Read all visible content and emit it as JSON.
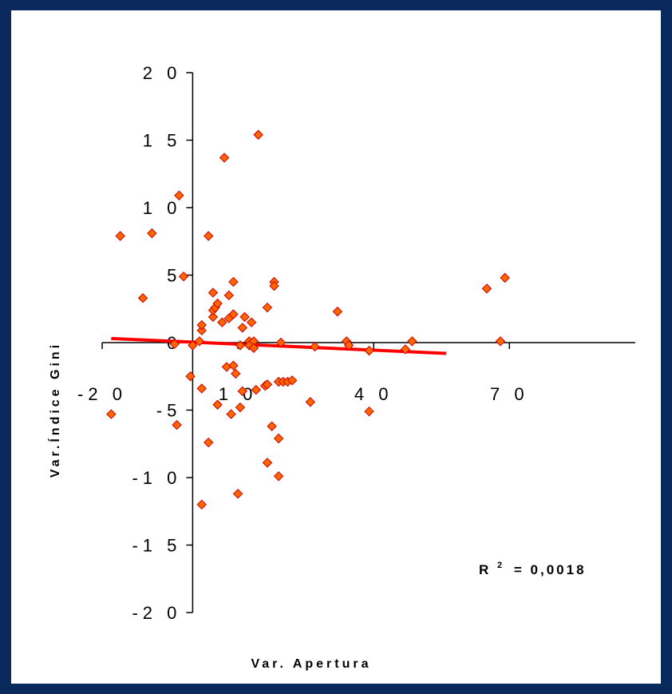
{
  "chart_data": {
    "type": "scatter",
    "xlabel": "Var. Apertura",
    "ylabel": "Var.Índice Gini",
    "xlim": [
      -20,
      70
    ],
    "ylim": [
      -20,
      20
    ],
    "x_ticks": [
      "-2 0",
      "1 0",
      "4 0",
      "7 0"
    ],
    "y_ticks": [
      "2 0",
      "1 5",
      "1 0",
      "5",
      "0",
      "-5",
      "-1 0",
      "-1 5",
      "-2 0"
    ],
    "annotation": {
      "r_label": "R",
      "r_exp": "2",
      "r_value": "= 0,0018"
    },
    "marker_color": "#ff6600",
    "marker_edge": "#cc0000",
    "trend_color": "#ff0000",
    "trendline": {
      "x": [
        -18,
        56
      ],
      "y": [
        0.3,
        -0.8
      ]
    },
    "points": [
      [
        -18,
        -5.3
      ],
      [
        -16,
        7.9
      ],
      [
        -11,
        3.3
      ],
      [
        -9,
        8.1
      ],
      [
        -4,
        -0.1
      ],
      [
        -3.5,
        -6.1
      ],
      [
        -3,
        10.9
      ],
      [
        -2,
        4.9
      ],
      [
        -0.5,
        -2.5
      ],
      [
        0,
        -0.2
      ],
      [
        1.5,
        0.1
      ],
      [
        2,
        0.9
      ],
      [
        2,
        1.3
      ],
      [
        2,
        -3.4
      ],
      [
        2,
        -12
      ],
      [
        3.5,
        -7.4
      ],
      [
        3.5,
        7.9
      ],
      [
        4.5,
        1.9
      ],
      [
        4.5,
        3.7
      ],
      [
        4.5,
        2.4
      ],
      [
        5,
        2.6
      ],
      [
        5.5,
        2.9
      ],
      [
        5.5,
        -4.6
      ],
      [
        6.5,
        1.5
      ],
      [
        7,
        13.7
      ],
      [
        7.5,
        -1.8
      ],
      [
        8,
        1.8
      ],
      [
        8,
        3.5
      ],
      [
        8.5,
        -5.3
      ],
      [
        9,
        2.1
      ],
      [
        9,
        4.5
      ],
      [
        9,
        -1.7
      ],
      [
        9.5,
        -2.3
      ],
      [
        10,
        -11.2
      ],
      [
        10.5,
        -4.8
      ],
      [
        10.5,
        -0.2
      ],
      [
        11,
        1.1
      ],
      [
        11,
        -3.6
      ],
      [
        11.5,
        1.9
      ],
      [
        12.5,
        0.1
      ],
      [
        12.5,
        -0.2
      ],
      [
        13,
        1.5
      ],
      [
        13.5,
        0.1
      ],
      [
        13.5,
        -0.4
      ],
      [
        14,
        -3.5
      ],
      [
        14.5,
        15.4
      ],
      [
        16,
        -3.2
      ],
      [
        16.5,
        -3.1
      ],
      [
        16.5,
        2.6
      ],
      [
        16.5,
        -8.9
      ],
      [
        17.5,
        -6.2
      ],
      [
        18,
        4.5
      ],
      [
        18,
        4.2
      ],
      [
        19,
        -2.9
      ],
      [
        19,
        -7.1
      ],
      [
        19,
        -9.9
      ],
      [
        19.5,
        0.0
      ],
      [
        20,
        -2.9
      ],
      [
        21,
        -2.9
      ],
      [
        22,
        -2.8
      ],
      [
        26,
        -4.4
      ],
      [
        27,
        -0.3
      ],
      [
        32,
        2.3
      ],
      [
        34,
        0.1
      ],
      [
        34.5,
        -0.2
      ],
      [
        39,
        -5.1
      ],
      [
        39,
        -0.6
      ],
      [
        47,
        -0.5
      ],
      [
        48.5,
        0.1
      ],
      [
        65,
        4.0
      ],
      [
        68,
        0.1
      ],
      [
        69,
        4.8
      ]
    ]
  }
}
